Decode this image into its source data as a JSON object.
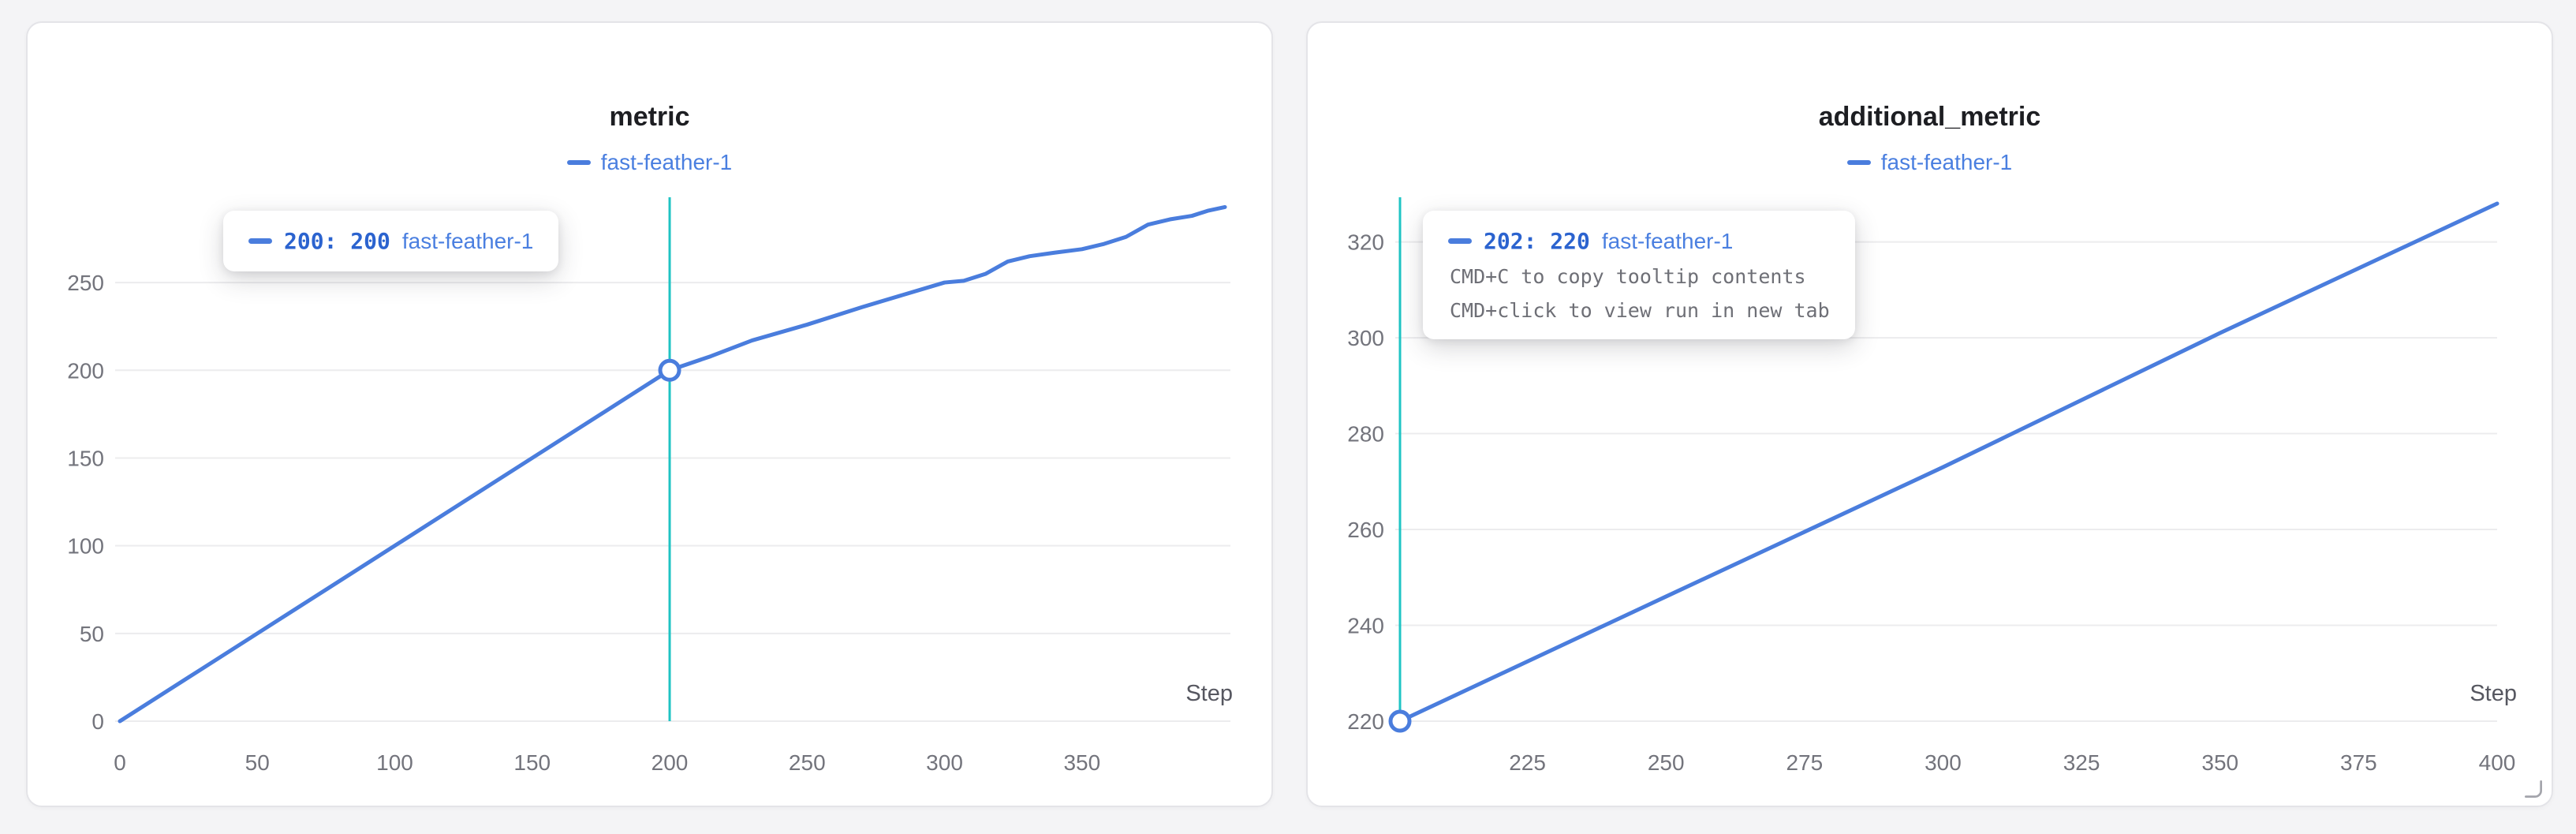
{
  "colors": {
    "run": "#4a7ddd",
    "run_text": "#4a7fe0",
    "value_text": "#2b63cf",
    "crosshair": "#1fc4c4",
    "grid": "#ececee",
    "tick_text": "#73747c",
    "title": "#1d1e22",
    "step_label": "#565760",
    "hint_text": "#6e6f76"
  },
  "panels": [
    {
      "title": "metric",
      "legend_label": "fast-feather-1",
      "tooltip": {
        "value": "200: 200",
        "run": "fast-feather-1",
        "hints": []
      }
    },
    {
      "title": "additional_metric",
      "legend_label": "fast-feather-1",
      "tooltip": {
        "value": "202: 220",
        "run": "fast-feather-1",
        "hints": [
          "CMD+C to copy tooltip contents",
          "CMD+click to view run in new tab"
        ]
      }
    }
  ],
  "chart_data": [
    {
      "type": "line",
      "title": "metric",
      "xlabel": "Step",
      "xlim": [
        0,
        404
      ],
      "ylim": [
        0,
        295
      ],
      "xticks": [
        0,
        50,
        100,
        150,
        200,
        250,
        300,
        350
      ],
      "yticks": [
        0,
        50,
        100,
        150,
        200,
        250
      ],
      "grid": "horizontal",
      "legend_position": "top",
      "crosshair_x": 200,
      "marker": {
        "x": 200,
        "y": 200
      },
      "series": [
        {
          "name": "fast-feather-1",
          "x": [
            0,
            25,
            50,
            75,
            100,
            125,
            150,
            175,
            200,
            215,
            230,
            250,
            270,
            285,
            300,
            307,
            315,
            323,
            331,
            340,
            350,
            358,
            366,
            374,
            382,
            390,
            396,
            402
          ],
          "y": [
            0,
            25,
            50,
            75,
            100,
            125,
            150,
            175,
            200,
            208,
            217,
            226,
            236,
            243,
            250,
            251,
            255,
            262,
            265,
            267,
            269,
            272,
            276,
            283,
            286,
            288,
            291,
            293
          ]
        }
      ]
    },
    {
      "type": "line",
      "title": "additional_metric",
      "xlabel": "Step",
      "xlim": [
        202,
        400
      ],
      "ylim": [
        220,
        328
      ],
      "xticks": [
        225,
        250,
        275,
        300,
        325,
        350,
        375,
        400
      ],
      "yticks": [
        220,
        240,
        260,
        280,
        300,
        320
      ],
      "grid": "horizontal",
      "legend_position": "top",
      "crosshair_x": 202,
      "marker": {
        "x": 202,
        "y": 220
      },
      "series": [
        {
          "name": "fast-feather-1",
          "x": [
            202,
            250,
            300,
            350,
            400
          ],
          "y": [
            220,
            246,
            273,
            301,
            328
          ]
        }
      ]
    }
  ]
}
